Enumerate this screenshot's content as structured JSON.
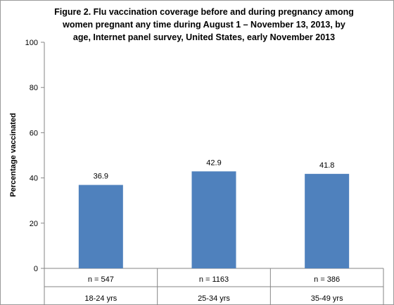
{
  "chart_data": {
    "type": "bar",
    "title_lines": [
      "Figure 2.  Flu vaccination coverage before and during pregnancy among",
      "women pregnant any time during August 1 – November 13, 2013,  by",
      "age, Internet panel survey, United States, early November 2013"
    ],
    "ylabel": "Percentage vaccinated",
    "xlabel": "",
    "ylim": [
      0,
      100
    ],
    "yticks": [
      0,
      20,
      40,
      60,
      80,
      100
    ],
    "categories": [
      "18-24 yrs",
      "25-34 yrs",
      "35-49 yrs"
    ],
    "sample_sizes": [
      "n  = 547",
      "n = 1163",
      "n = 386"
    ],
    "values": [
      36.9,
      42.9,
      41.8
    ],
    "value_labels": [
      "36.9",
      "42.9",
      "41.8"
    ],
    "bar_color": "#4f81bd",
    "grid": false,
    "legend": "none"
  }
}
